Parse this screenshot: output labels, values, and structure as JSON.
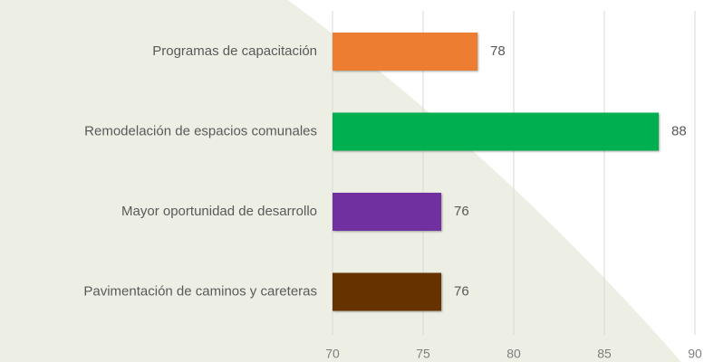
{
  "chart_data": {
    "type": "barh",
    "categories": [
      "Programas de capacitación",
      "Remodelación de espacios comunales",
      "Mayor oportunidad de desarrollo",
      "Pavimentación de caminos y careteras"
    ],
    "values": [
      78,
      88,
      76,
      76
    ],
    "colors": [
      "#ed7d31",
      "#00b050",
      "#7030a0",
      "#663300"
    ],
    "xlim": [
      70,
      90
    ],
    "xticks": [
      70,
      75,
      80,
      85,
      90
    ],
    "grid": true
  }
}
